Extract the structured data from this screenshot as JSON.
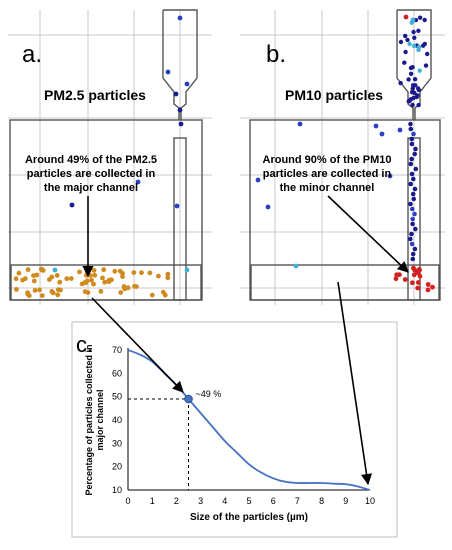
{
  "panel_a": {
    "letter": "a.",
    "title": "PM2.5 particles",
    "annotation": [
      "Around 49% of the PM2.5",
      "particles are collected in",
      "the major channel"
    ]
  },
  "panel_b": {
    "letter": "b.",
    "title": "PM10 particles",
    "annotation": [
      "Around 90% of the PM10",
      "particles are collected in",
      "the minor channel"
    ]
  },
  "panel_c": {
    "letter": "c.",
    "point_label": "~49 %"
  },
  "colors": {
    "curve": "#4472c4",
    "particle_dark": "#1a1a8c",
    "particle_blue": "#2b3fc4",
    "particle_cyan": "#3fb0d8",
    "particle_orange": "#d08a1e",
    "particle_red": "#d42020",
    "grid": "#c8c8c8",
    "channel": "#555555"
  },
  "chart_data": {
    "type": "line",
    "xlabel": "Size of the particles (µm)",
    "ylabel": [
      "Percentage of particles collected in",
      "major channel"
    ],
    "xlim": [
      0,
      10
    ],
    "ylim": [
      10,
      70
    ],
    "xticks": [
      0,
      1,
      2,
      3,
      4,
      5,
      6,
      7,
      8,
      9,
      10
    ],
    "yticks": [
      10,
      20,
      30,
      40,
      50,
      60,
      70
    ],
    "grid": false,
    "x": [
      0,
      0.5,
      1,
      1.5,
      2,
      2.5,
      3,
      3.5,
      4,
      4.5,
      5,
      5.5,
      6,
      6.5,
      7,
      7.5,
      8,
      8.5,
      9,
      9.5,
      10
    ],
    "y": [
      70,
      68,
      65,
      60,
      55,
      49,
      43,
      37,
      31,
      26,
      21,
      17.5,
      15,
      13.5,
      13,
      13,
      13,
      12.7,
      12.5,
      11.5,
      10
    ],
    "highlight": {
      "x": 2.5,
      "y": 49
    }
  }
}
